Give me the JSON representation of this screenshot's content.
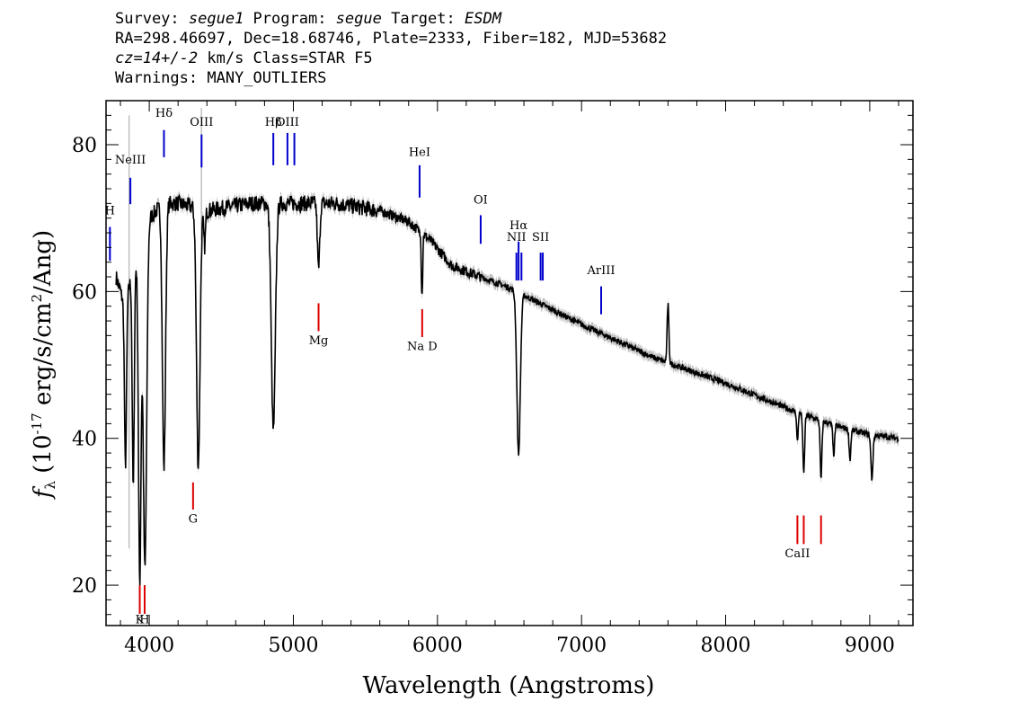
{
  "header": {
    "line1_survey_label": "Survey: ",
    "line1_survey": "segue1",
    "line1_program_label": " Program: ",
    "line1_program": "segue",
    "line1_target_label": " Target: ",
    "line1_target": "ESDM",
    "line2": "RA=298.46697, Dec=18.68746, Plate=2333, Fiber=182, MJD=53682",
    "line3_cz": "cz=14+/-2",
    "line3_rest": " km/s Class=STAR F5",
    "line4": "Warnings: MANY_OUTLIERS"
  },
  "chart_data": {
    "type": "line",
    "xlabel": "Wavelength (Angstroms)",
    "ylabel_prefix": "f",
    "ylabel_sub": "λ",
    "ylabel_units_a": " (10",
    "ylabel_exp": "-17",
    "ylabel_units_b": " erg/s/cm",
    "ylabel_exp2": "2",
    "ylabel_units_c": "/Ang)",
    "xlim": [
      3700,
      9300
    ],
    "ylim": [
      14.5,
      86
    ],
    "xticks": [
      4000,
      5000,
      6000,
      7000,
      8000,
      9000
    ],
    "yticks": [
      20,
      40,
      60,
      80
    ],
    "colors": {
      "spectrum": "#000000",
      "error": "#c0c0c0",
      "emission": "#0000cc",
      "absorption": "#dd0000"
    },
    "emission_lines": [
      {
        "label": "H",
        "wave": 3727,
        "y0": 64.2,
        "y1": 68.8,
        "ly": 70.5
      },
      {
        "label": "NeIII",
        "wave": 3869,
        "y0": 71.9,
        "y1": 75.5,
        "ly": 77.4
      },
      {
        "label": "Hδ",
        "wave": 4102,
        "y0": 78.3,
        "y1": 82.0,
        "ly": 83.8
      },
      {
        "label": "OIII",
        "wave": 4363,
        "y0": 76.9,
        "y1": 81.4,
        "ly": 82.6
      },
      {
        "label": "Hβ",
        "wave": 4861,
        "y0": 77.2,
        "y1": 81.6,
        "ly": 82.6
      },
      {
        "label": "OIII",
        "wave": 4959,
        "y0": 77.2,
        "y1": 81.6,
        "ly": 82.6
      },
      {
        "label": "",
        "wave": 5007,
        "y0": 77.2,
        "y1": 81.6,
        "ly": 82.6
      },
      {
        "label": "HeI",
        "wave": 5876,
        "y0": 72.8,
        "y1": 77.2,
        "ly": 78.5
      },
      {
        "label": "OI",
        "wave": 6300,
        "y0": 66.5,
        "y1": 70.4,
        "ly": 72.0
      },
      {
        "label": "NII",
        "wave": 6548,
        "y0": 61.5,
        "y1": 65.3,
        "ly": 66.9
      },
      {
        "label": "Hα",
        "wave": 6563,
        "y0": 61.5,
        "y1": 66.8,
        "ly": 68.5
      },
      {
        "label": "",
        "wave": 6583,
        "y0": 61.5,
        "y1": 65.3,
        "ly": 66.9
      },
      {
        "label": "SII",
        "wave": 6716,
        "y0": 61.5,
        "y1": 65.3,
        "ly": 66.9
      },
      {
        "label": "",
        "wave": 6731,
        "y0": 61.5,
        "y1": 65.3,
        "ly": 66.9
      },
      {
        "label": "ArIII",
        "wave": 7136,
        "y0": 56.9,
        "y1": 60.7,
        "ly": 62.4
      }
    ],
    "absorption_lines": [
      {
        "label": "K",
        "wave": 3934,
        "y0": 16.1,
        "y1": 20.0,
        "ly": 14.8
      },
      {
        "label": "H",
        "wave": 3968,
        "y0": 16.1,
        "y1": 20.0,
        "ly": 14.8
      },
      {
        "label": "G",
        "wave": 4304,
        "y0": 30.3,
        "y1": 34.0,
        "ly": 28.5
      },
      {
        "label": "Mg",
        "wave": 5175,
        "y0": 54.6,
        "y1": 58.4,
        "ly": 52.8
      },
      {
        "label": "Na D",
        "wave": 5894,
        "y0": 53.8,
        "y1": 57.6,
        "ly": 52.0
      },
      {
        "label": "CaII",
        "wave": 8498,
        "y0": 25.6,
        "y1": 29.5,
        "ly": 23.8
      },
      {
        "label": "",
        "wave": 8542,
        "y0": 25.6,
        "y1": 29.5,
        "ly": 23.8
      },
      {
        "label": "",
        "wave": 8662,
        "y0": 25.6,
        "y1": 29.5,
        "ly": 23.8
      }
    ],
    "continuum_knots": [
      [
        3770,
        62
      ],
      [
        3830,
        58
      ],
      [
        3900,
        64
      ],
      [
        4000,
        70
      ],
      [
        4100,
        72
      ],
      [
        4200,
        72
      ],
      [
        4400,
        71
      ],
      [
        4700,
        72
      ],
      [
        5000,
        72
      ],
      [
        5300,
        72
      ],
      [
        5600,
        71
      ],
      [
        5800,
        69.5
      ],
      [
        5950,
        67
      ],
      [
        6100,
        63.5
      ],
      [
        6300,
        62
      ],
      [
        6500,
        60.5
      ],
      [
        6700,
        58.5
      ],
      [
        7000,
        55.5
      ],
      [
        7500,
        51
      ],
      [
        8000,
        47.5
      ],
      [
        8500,
        43.5
      ],
      [
        8800,
        41.5
      ],
      [
        9000,
        40.5
      ],
      [
        9200,
        40
      ]
    ],
    "absorption_dips": [
      {
        "wave": 3835,
        "depth": 22,
        "width": 7
      },
      {
        "wave": 3889,
        "depth": 30,
        "width": 7
      },
      {
        "wave": 3934,
        "depth": 45,
        "width": 9
      },
      {
        "wave": 3970,
        "depth": 46,
        "width": 12
      },
      {
        "wave": 4102,
        "depth": 36,
        "width": 11
      },
      {
        "wave": 4340,
        "depth": 35,
        "width": 12
      },
      {
        "wave": 4384,
        "depth": 5,
        "width": 6
      },
      {
        "wave": 4861,
        "depth": 31,
        "width": 14
      },
      {
        "wave": 5175,
        "depth": 9,
        "width": 8
      },
      {
        "wave": 5890,
        "depth": 7,
        "width": 3
      },
      {
        "wave": 5896,
        "depth": 6,
        "width": 3
      },
      {
        "wave": 6563,
        "depth": 22,
        "width": 12
      },
      {
        "wave": 7600,
        "depth": -8,
        "width": 6
      },
      {
        "wave": 8498,
        "depth": 4,
        "width": 5
      },
      {
        "wave": 8542,
        "depth": 8,
        "width": 6
      },
      {
        "wave": 8662,
        "depth": 8,
        "width": 6
      },
      {
        "wave": 8750,
        "depth": 4,
        "width": 6
      },
      {
        "wave": 8863,
        "depth": 4,
        "width": 6
      },
      {
        "wave": 9015,
        "depth": 6,
        "width": 7
      }
    ],
    "outliers": [
      {
        "wave": 3860,
        "y0": 25,
        "y1": 84
      },
      {
        "wave": 4362,
        "y0": 67,
        "y1": 85
      }
    ]
  }
}
